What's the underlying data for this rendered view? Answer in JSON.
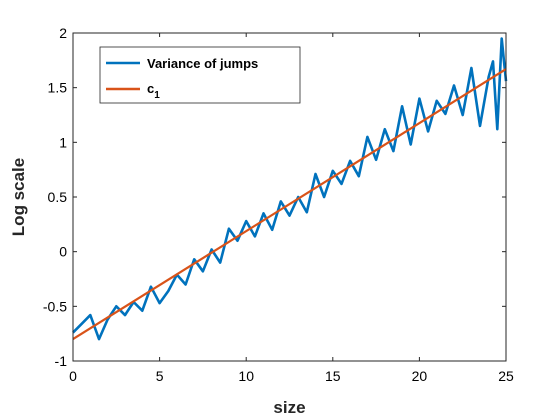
{
  "chart_data": {
    "type": "line",
    "xlabel": "size",
    "ylabel": "Log scale",
    "xlim": [
      0,
      25
    ],
    "ylim": [
      -1,
      2
    ],
    "xticks": [
      0,
      5,
      10,
      15,
      20,
      25
    ],
    "yticks": [
      -1,
      -0.5,
      0,
      0.5,
      1,
      1.5,
      2
    ],
    "ytick_labels": [
      "-1",
      "-0.5",
      "0",
      "0.5",
      "1",
      "1.5",
      "2"
    ],
    "grid": false,
    "legend_position": "top-left",
    "series": [
      {
        "name": "Variance of jumps",
        "color": "#0072BD",
        "x": [
          0.0,
          0.5,
          1.0,
          1.5,
          2.0,
          2.5,
          3.0,
          3.5,
          4.0,
          4.5,
          5.0,
          5.5,
          6.0,
          6.5,
          7.0,
          7.5,
          8.0,
          8.5,
          9.0,
          9.5,
          10.0,
          10.5,
          11.0,
          11.5,
          12.0,
          12.5,
          13.0,
          13.5,
          14.0,
          14.5,
          15.0,
          15.5,
          16.0,
          16.5,
          17.0,
          17.5,
          18.0,
          18.5,
          19.0,
          19.5,
          20.0,
          20.5,
          21.0,
          21.5,
          22.0,
          22.5,
          23.0,
          23.5,
          24.0,
          24.25,
          24.5,
          24.75,
          25.0
        ],
        "y": [
          -0.74,
          -0.66,
          -0.58,
          -0.8,
          -0.62,
          -0.5,
          -0.58,
          -0.46,
          -0.54,
          -0.32,
          -0.47,
          -0.36,
          -0.21,
          -0.3,
          -0.07,
          -0.18,
          0.02,
          -0.1,
          0.21,
          0.1,
          0.28,
          0.14,
          0.35,
          0.2,
          0.46,
          0.33,
          0.5,
          0.36,
          0.71,
          0.5,
          0.74,
          0.62,
          0.83,
          0.69,
          1.05,
          0.84,
          1.12,
          0.92,
          1.33,
          0.98,
          1.4,
          1.1,
          1.38,
          1.26,
          1.52,
          1.25,
          1.68,
          1.15,
          1.6,
          1.74,
          1.12,
          1.95,
          1.56
        ]
      },
      {
        "name": "c",
        "name_subscript": "1",
        "color": "#D95319",
        "x": [
          0,
          25
        ],
        "y": [
          -0.8,
          1.67
        ]
      }
    ]
  }
}
